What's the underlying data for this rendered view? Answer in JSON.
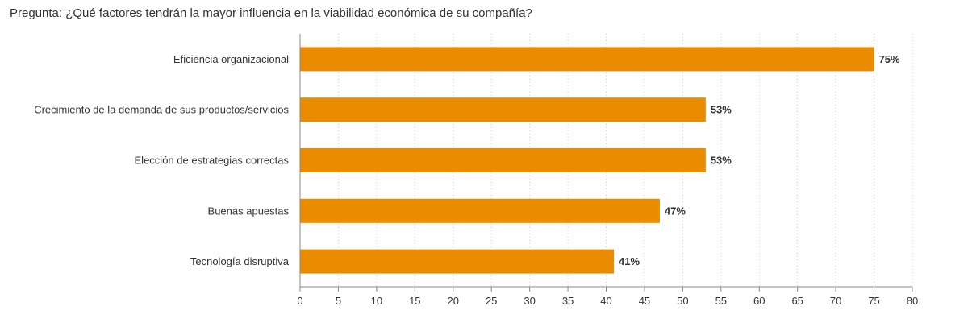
{
  "chart_title": "Pregunta: ¿Qué factores tendrán la mayor influencia en la viabilidad económica de su compañía?",
  "chart_data": {
    "type": "bar",
    "orientation": "horizontal",
    "title": "Pregunta: ¿Qué factores tendrán la mayor influencia en la viabilidad económica de su compañía?",
    "categories": [
      "Eficiencia organizacional",
      "Crecimiento de la demanda de sus productos/servicios",
      "Elección de estrategias correctas",
      "Buenas apuestas",
      "Tecnología disruptiva"
    ],
    "values": [
      75,
      53,
      53,
      47,
      41
    ],
    "value_labels": [
      "75%",
      "53%",
      "53%",
      "47%",
      "41%"
    ],
    "xlim": [
      0,
      80
    ],
    "xticks": [
      0,
      5,
      10,
      15,
      20,
      25,
      30,
      35,
      40,
      45,
      50,
      55,
      60,
      65,
      70,
      75,
      80
    ],
    "xlabel": "",
    "ylabel": "",
    "grid": "vertical-dotted",
    "legend": "none",
    "bar_color": "#ea8c00",
    "grid_color": "#cccccc",
    "axis_color": "#888888"
  }
}
